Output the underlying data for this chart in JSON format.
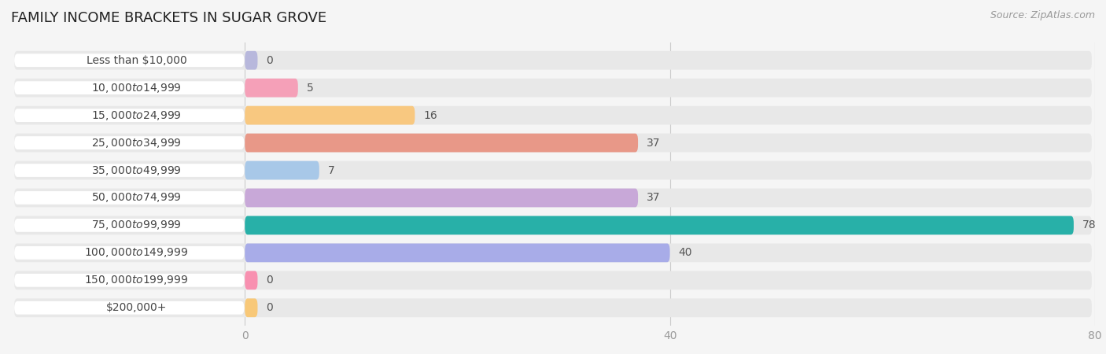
{
  "title": "FAMILY INCOME BRACKETS IN SUGAR GROVE",
  "source": "Source: ZipAtlas.com",
  "categories": [
    "Less than $10,000",
    "$10,000 to $14,999",
    "$15,000 to $24,999",
    "$25,000 to $34,999",
    "$35,000 to $49,999",
    "$50,000 to $74,999",
    "$75,000 to $99,999",
    "$100,000 to $149,999",
    "$150,000 to $199,999",
    "$200,000+"
  ],
  "values": [
    0,
    5,
    16,
    37,
    7,
    37,
    78,
    40,
    0,
    0
  ],
  "bar_colors": [
    "#b8b8dc",
    "#f5a0b8",
    "#f8c880",
    "#e89888",
    "#a8c8e8",
    "#c8a8d8",
    "#28b0a8",
    "#a8ace8",
    "#f890b0",
    "#f8c878"
  ],
  "background_color": "#f5f5f5",
  "bar_background": "#e8e8e8",
  "xlim_data": [
    0,
    80
  ],
  "xticks": [
    0,
    40,
    80
  ],
  "title_fontsize": 13,
  "label_fontsize": 10,
  "value_fontsize": 10,
  "bar_height": 0.68,
  "label_pill_color": "#ffffff",
  "label_text_color": "#444444",
  "value_text_color": "#555555",
  "grid_color": "#cccccc",
  "tick_color": "#999999"
}
